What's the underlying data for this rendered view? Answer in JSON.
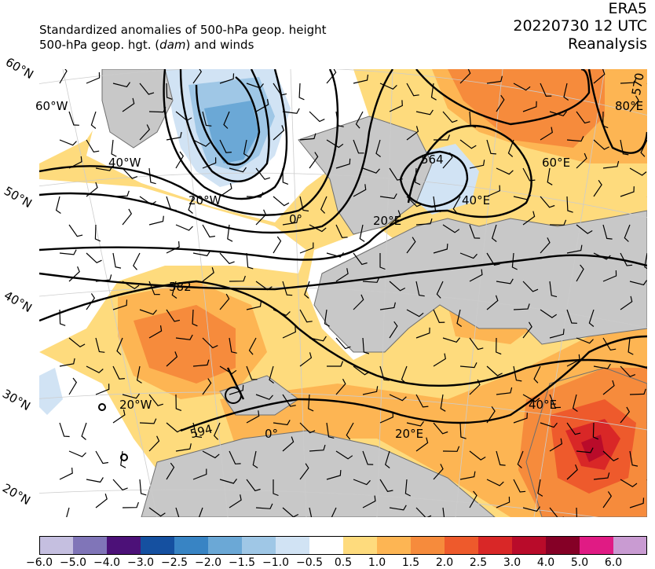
{
  "header": {
    "title_line1": "Standardized anomalies of 500-hPa geop. height",
    "title_line2_a": "500-hPa geop. hgt. (",
    "title_line2_unit": "dam",
    "title_line2_b": ") and winds",
    "model": "ERA5",
    "datetime": "20220730 12 UTC",
    "product": "Reanalysis"
  },
  "map": {
    "lat_labels": [
      "60°N",
      "50°N",
      "40°N",
      "30°N",
      "20°N"
    ],
    "lon_labels": [
      "60°W",
      "40°W",
      "20°W",
      "0°",
      "20°E",
      "40°E",
      "60°E",
      "80°E",
      "20°W",
      "0°",
      "20°E",
      "40°E"
    ],
    "contour_labels": [
      "564",
      "582",
      "594",
      "570"
    ],
    "colors": {
      "land": "#c8c8c8",
      "coast": "#6e6e6e"
    }
  },
  "colorbar": {
    "ticks": [
      "−6.0",
      "−5.0",
      "−4.0",
      "−3.0",
      "−2.5",
      "−2.0",
      "−1.5",
      "−1.0",
      "−0.5",
      "0.5",
      "1.0",
      "1.5",
      "2.0",
      "2.5",
      "3.0",
      "4.0",
      "5.0",
      "6.0"
    ],
    "colors": [
      "#c5bfe0",
      "#8075b8",
      "#4c1178",
      "#1550a0",
      "#3884c4",
      "#6ba8d6",
      "#9fc7e6",
      "#d1e3f4",
      "#ffffff",
      "#fedb7d",
      "#fdb553",
      "#f68b3c",
      "#ee5a2c",
      "#d92727",
      "#b90b2a",
      "#850026",
      "#e01b84",
      "#c99bd2"
    ]
  }
}
